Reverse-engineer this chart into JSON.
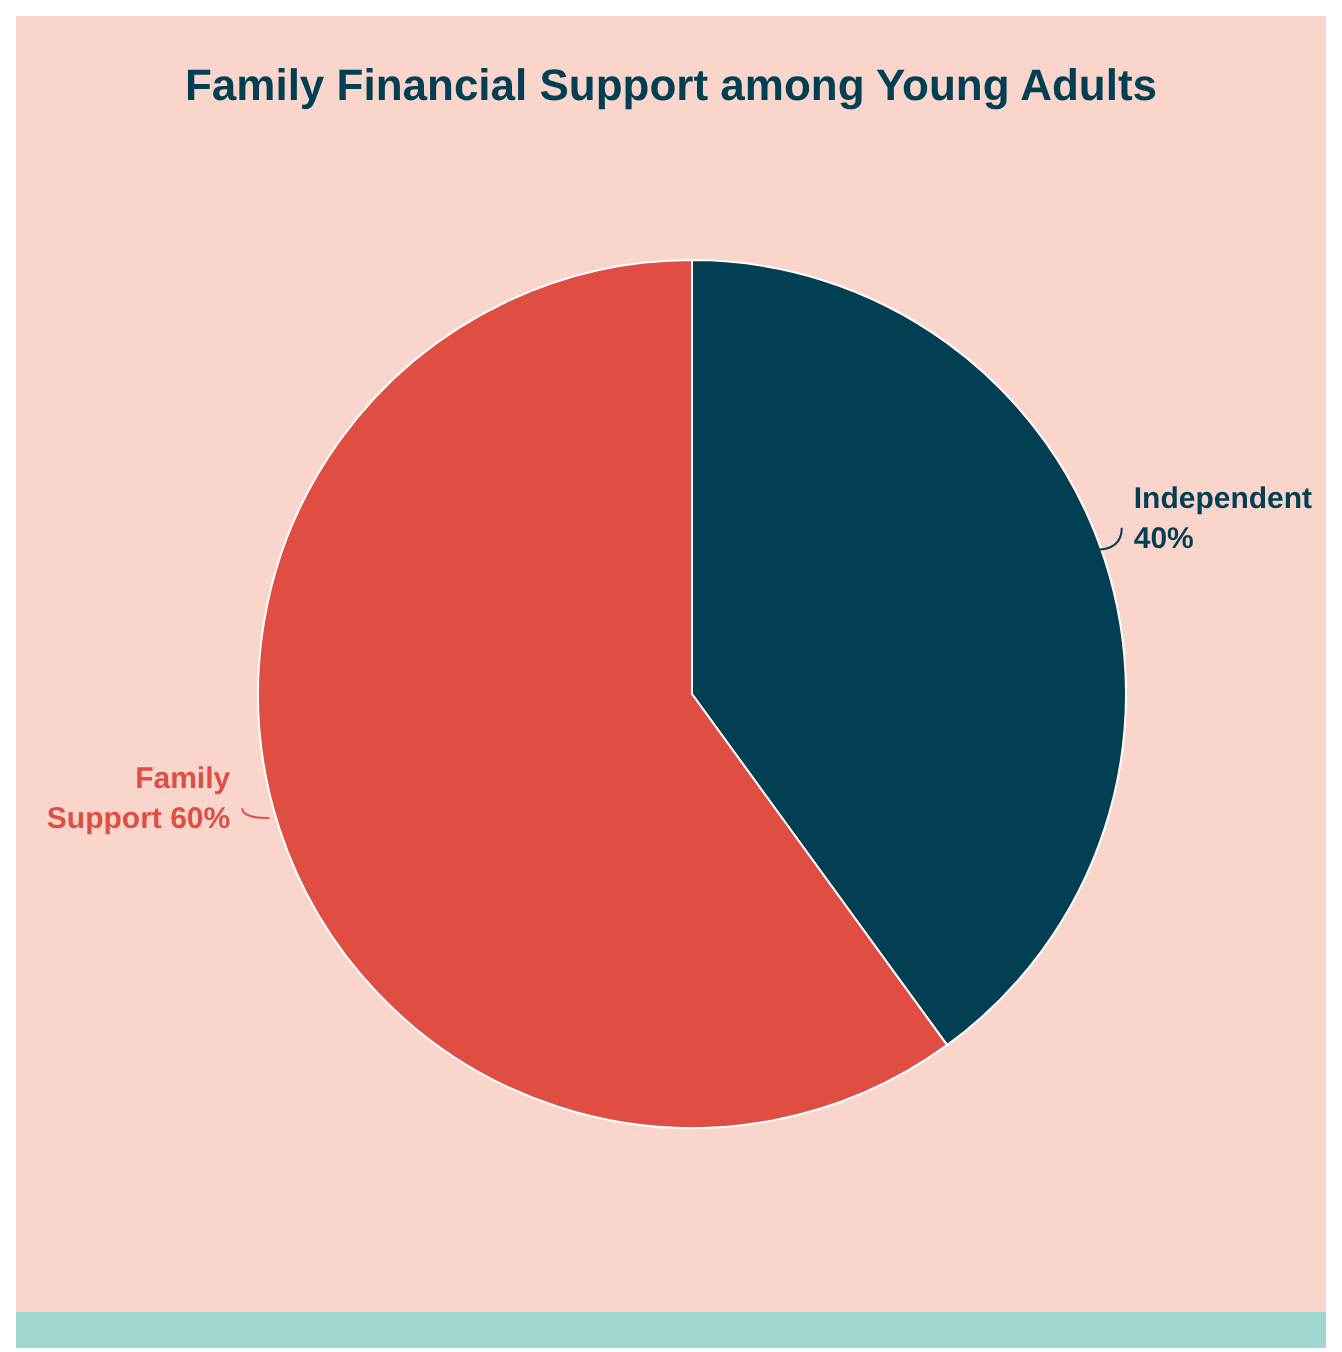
{
  "chart_data": {
    "type": "pie",
    "title": "Family Financial Support among Young Adults",
    "categories": [
      "Independent",
      "Family Support"
    ],
    "values": [
      40,
      60
    ],
    "colors": [
      "#023f52",
      "#e04e43"
    ],
    "value_labels": [
      "40%",
      "60%"
    ],
    "legend": false
  }
}
